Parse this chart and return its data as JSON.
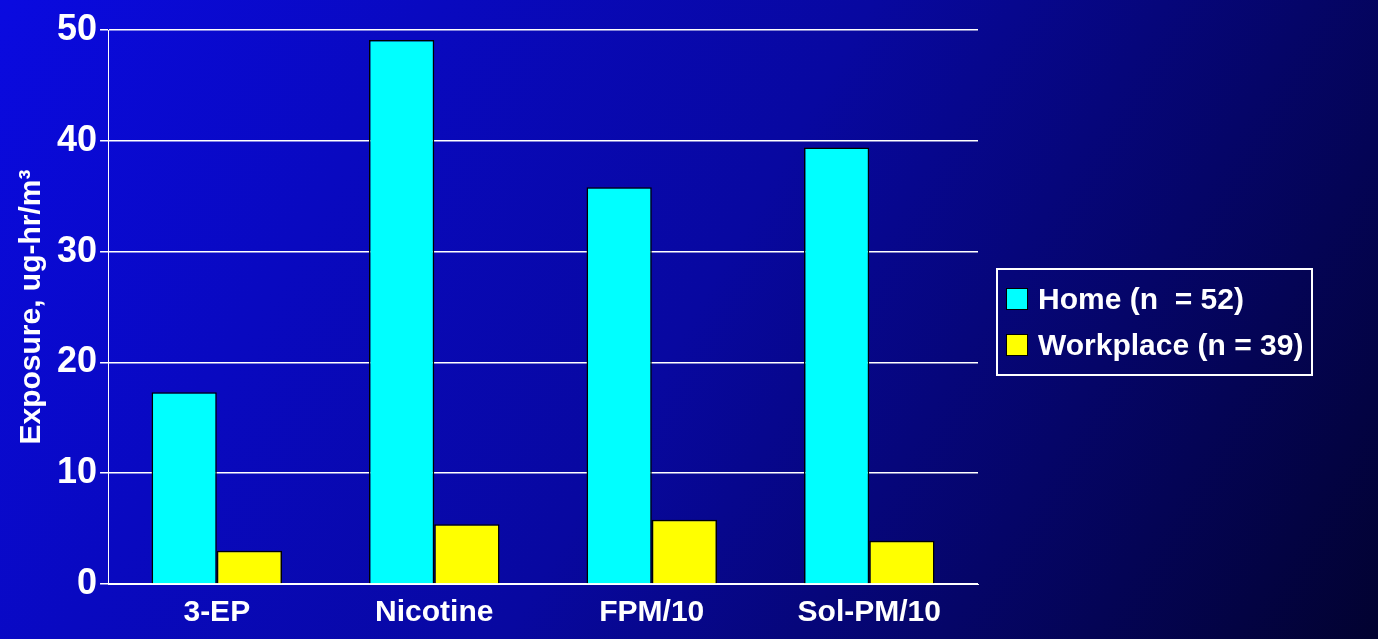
{
  "chart_data": {
    "type": "bar",
    "ylabel": "Exposure, ug-hr/m³",
    "categories": [
      "3-EP",
      "Nicotine",
      "FPM/10",
      "Sol-PM/10"
    ],
    "series": [
      {
        "name": "Home (n  = 52)",
        "color": "#00ffff",
        "values": [
          17.3,
          49.1,
          35.8,
          39.4
        ]
      },
      {
        "name": "Workplace (n = 39)",
        "color": "#ffff00",
        "values": [
          3.0,
          5.4,
          5.8,
          3.9
        ]
      }
    ],
    "ylim": [
      0,
      50
    ],
    "yticks": [
      0,
      10,
      20,
      30,
      40,
      50
    ],
    "grid": "y",
    "legend": "right"
  }
}
